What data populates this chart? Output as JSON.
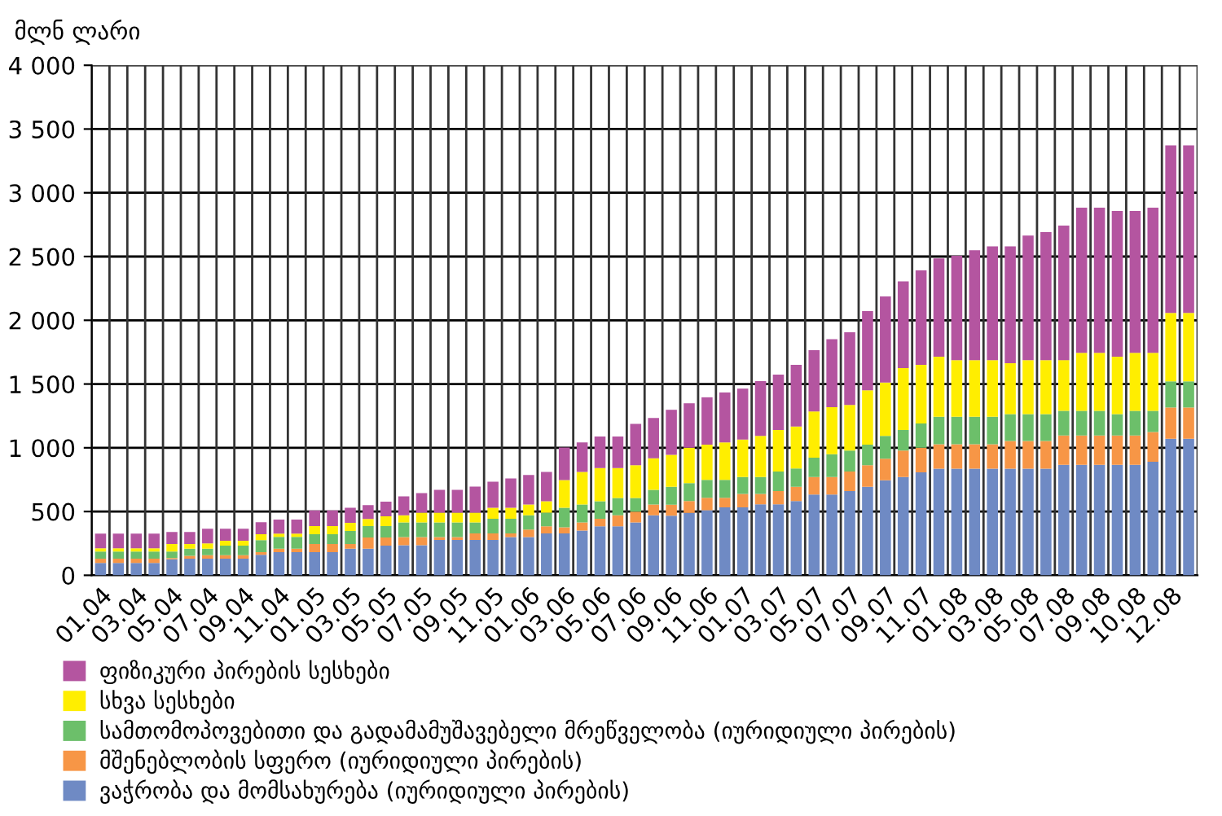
{
  "chart_data": {
    "type": "bar",
    "stacked": true,
    "ylabel": "მლნ ლარი",
    "categories": [
      "01.04",
      null,
      "03.04",
      null,
      "05.04",
      null,
      "07.04",
      null,
      "09.04",
      null,
      "11.04",
      null,
      "01.05",
      null,
      "03.05",
      null,
      "05.05",
      null,
      "07.05",
      null,
      "09.05",
      null,
      "11.05",
      null,
      "01.06",
      null,
      "03.06",
      null,
      "05.06",
      null,
      "07.06",
      null,
      "09.06",
      null,
      "11.06",
      null,
      "01.07",
      null,
      "03.07",
      null,
      "05.07",
      null,
      "07.07",
      null,
      "09.07",
      null,
      "11.07",
      null,
      "01.08",
      null,
      "03.08",
      null,
      "05.08",
      null,
      "07.08",
      null,
      "09.08",
      null,
      "10.08",
      null,
      "12.08",
      null
    ],
    "ylim": [
      0,
      4000
    ],
    "yticks": [
      0,
      500,
      {
        "value": 1000,
        "label": "1 000"
      },
      {
        "value": 1500,
        "label": "1 500"
      },
      {
        "value": 2000,
        "label": "2 000"
      },
      {
        "value": 2500,
        "label": "2 500"
      },
      {
        "value": 3000,
        "label": "3 000"
      },
      {
        "value": 3500,
        "label": "3 500"
      },
      {
        "value": 4000,
        "label": "4 000"
      }
    ],
    "grid": true,
    "legend": "bottom",
    "series": [
      {
        "name": "ვაჭრობა და მომსახურება (იურიდიული პირების)",
        "color": "#6f8ac4",
        "values": [
          97,
          97,
          97,
          97,
          125,
          131,
          131,
          131,
          131,
          161,
          182,
          182,
          182,
          182,
          208,
          208,
          233,
          235,
          235,
          278,
          278,
          278,
          278,
          299,
          299,
          329,
          329,
          350,
          384,
          384,
          414,
          470,
          468,
          489,
          511,
          532,
          532,
          557,
          557,
          583,
          634,
          634,
          660,
          694,
          745,
          770,
          808,
          836,
          836,
          836,
          836,
          836,
          836,
          836,
          866,
          866,
          866,
          866,
          866,
          891,
          1071,
          1071
        ]
      },
      {
        "name": "მშენებლობის სფერო (იურიდიული პირების)",
        "color": "#f79646",
        "values": [
          34,
          34,
          34,
          34,
          10,
          22,
          26,
          26,
          26,
          21,
          26,
          26,
          64,
          64,
          38,
          89,
          64,
          64,
          64,
          21,
          21,
          51,
          51,
          30,
          60,
          55,
          47,
          64,
          60,
          86,
          86,
          85,
          85,
          94,
          97,
          76,
          106,
          81,
          103,
          111,
          136,
          136,
          153,
          170,
          170,
          209,
          192,
          192,
          192,
          192,
          192,
          218,
          218,
          218,
          231,
          231,
          231,
          231,
          231,
          232,
          245,
          245
        ]
      },
      {
        "name": "სამთომოპოვებითი და გადამამუშავებელი მრეწველობა (იურიდიული პირების)",
        "color": "#6cbf6a",
        "values": [
          55,
          55,
          55,
          55,
          51,
          55,
          51,
          76,
          76,
          94,
          93,
          93,
          76,
          76,
          102,
          89,
          89,
          115,
          115,
          115,
          115,
          85,
          115,
          115,
          111,
          107,
          153,
          141,
          137,
          136,
          106,
          115,
          141,
          140,
          141,
          141,
          132,
          132,
          153,
          144,
          153,
          179,
          166,
          161,
          179,
          161,
          191,
          215,
          215,
          215,
          215,
          210,
          210,
          210,
          193,
          193,
          193,
          167,
          193,
          167,
          205,
          205
        ]
      },
      {
        "name": "სხვა სესხები",
        "color": "#ffee00",
        "values": [
          26,
          26,
          26,
          26,
          60,
          38,
          42,
          38,
          38,
          46,
          25,
          25,
          64,
          64,
          63,
          55,
          76,
          56,
          77,
          77,
          77,
          77,
          85,
          85,
          85,
          90,
          218,
          256,
          260,
          235,
          257,
          248,
          251,
          277,
          276,
          293,
          294,
          324,
          327,
          328,
          362,
          370,
          357,
          426,
          417,
          485,
          460,
          471,
          445,
          445,
          445,
          399,
          424,
          424,
          398,
          454,
          454,
          450,
          454,
          454,
          536,
          536
        ]
      },
      {
        "name": "ფიზიკური პირების სესხები",
        "color": "#b455a0",
        "values": [
          114,
          114,
          114,
          114,
          93,
          93,
          115,
          94,
          94,
          94,
          111,
          111,
          123,
          123,
          119,
          110,
          115,
          149,
          154,
          179,
          179,
          205,
          205,
          231,
          231,
          230,
          256,
          231,
          248,
          248,
          324,
          316,
          353,
          349,
          371,
          392,
          400,
          429,
          434,
          485,
          481,
          532,
          570,
          621,
          676,
          681,
          740,
          771,
          819,
          862,
          892,
          917,
          977,
          1003,
          1054,
          1140,
          1140,
          1144,
          1114,
          1140,
          1315,
          1315
        ]
      }
    ]
  }
}
